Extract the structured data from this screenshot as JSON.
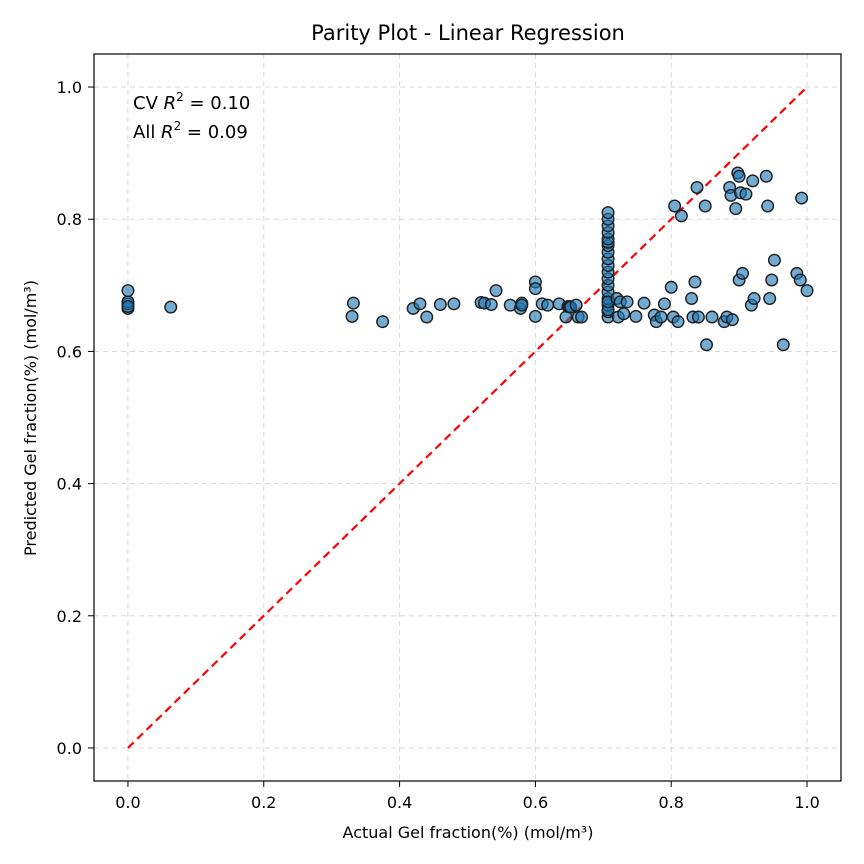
{
  "chart_data": {
    "type": "scatter",
    "title": "Parity Plot - Linear Regression",
    "xlabel": "Actual Gel fraction(%) (mol/m³)",
    "ylabel": "Predicted Gel fraction(%) (mol/m³)",
    "xlim": [
      -0.05,
      1.05
    ],
    "ylim": [
      -0.05,
      1.05
    ],
    "xticks": [
      0.0,
      0.2,
      0.4,
      0.6,
      0.8,
      1.0
    ],
    "yticks": [
      0.0,
      0.2,
      0.4,
      0.6,
      0.8,
      1.0
    ],
    "tick_labels_x": [
      "0.0",
      "0.2",
      "0.4",
      "0.6",
      "0.8",
      "1.0"
    ],
    "tick_labels_y": [
      "0.0",
      "0.2",
      "0.4",
      "0.6",
      "0.8",
      "1.0"
    ],
    "grid": true,
    "annotations": {
      "cv_prefix": "CV ",
      "cv_value": " = 0.10",
      "all_prefix": "All ",
      "all_value": " = 0.09",
      "r_symbol": "R",
      "exponent": "2"
    },
    "diagonal": {
      "from": [
        0,
        0
      ],
      "to": [
        1,
        1
      ],
      "color": "#ff0000"
    },
    "marker_color": "#1f77b4",
    "points": {
      "x": [
        0,
        0,
        0,
        0,
        0,
        0.063,
        0.33,
        0.332,
        0.375,
        0.42,
        0.43,
        0.44,
        0.46,
        0.48,
        0.52,
        0.525,
        0.535,
        0.542,
        0.563,
        0.578,
        0.58,
        0.58,
        0.6,
        0.6,
        0.6,
        0.61,
        0.618,
        0.635,
        0.645,
        0.648,
        0.65,
        0.652,
        0.66,
        0.663,
        0.668,
        0.707,
        0.707,
        0.707,
        0.707,
        0.707,
        0.707,
        0.707,
        0.707,
        0.707,
        0.707,
        0.707,
        0.707,
        0.707,
        0.707,
        0.707,
        0.707,
        0.707,
        0.707,
        0.707,
        0.707,
        0.72,
        0.722,
        0.725,
        0.73,
        0.735,
        0.748,
        0.76,
        0.775,
        0.778,
        0.785,
        0.79,
        0.8,
        0.803,
        0.805,
        0.81,
        0.815,
        0.83,
        0.832,
        0.835,
        0.838,
        0.84,
        0.85,
        0.852,
        0.86,
        0.878,
        0.882,
        0.886,
        0.888,
        0.89,
        0.895,
        0.898,
        0.9,
        0.9,
        0.902,
        0.905,
        0.91,
        0.918,
        0.92,
        0.922,
        0.94,
        0.942,
        0.945,
        0.948,
        0.952,
        0.965,
        0.985,
        0.99,
        0.992,
        1.0
      ],
      "y": [
        0.665,
        0.672,
        0.675,
        0.692,
        0.668,
        0.667,
        0.653,
        0.673,
        0.645,
        0.665,
        0.672,
        0.652,
        0.671,
        0.672,
        0.674,
        0.673,
        0.671,
        0.692,
        0.67,
        0.665,
        0.673,
        0.67,
        0.705,
        0.695,
        0.653,
        0.672,
        0.67,
        0.672,
        0.652,
        0.668,
        0.668,
        0.667,
        0.67,
        0.652,
        0.652,
        0.652,
        0.66,
        0.67,
        0.68,
        0.69,
        0.7,
        0.71,
        0.72,
        0.73,
        0.74,
        0.75,
        0.76,
        0.765,
        0.77,
        0.78,
        0.79,
        0.8,
        0.81,
        0.663,
        0.675,
        0.68,
        0.652,
        0.675,
        0.657,
        0.675,
        0.653,
        0.673,
        0.655,
        0.645,
        0.652,
        0.672,
        0.697,
        0.652,
        0.82,
        0.645,
        0.805,
        0.68,
        0.652,
        0.705,
        0.848,
        0.652,
        0.82,
        0.61,
        0.652,
        0.645,
        0.652,
        0.848,
        0.836,
        0.648,
        0.816,
        0.87,
        0.865,
        0.708,
        0.84,
        0.718,
        0.838,
        0.67,
        0.858,
        0.68,
        0.865,
        0.82,
        0.68,
        0.708,
        0.738,
        0.61,
        0.718,
        0.708,
        0.832,
        0.692
      ]
    }
  }
}
